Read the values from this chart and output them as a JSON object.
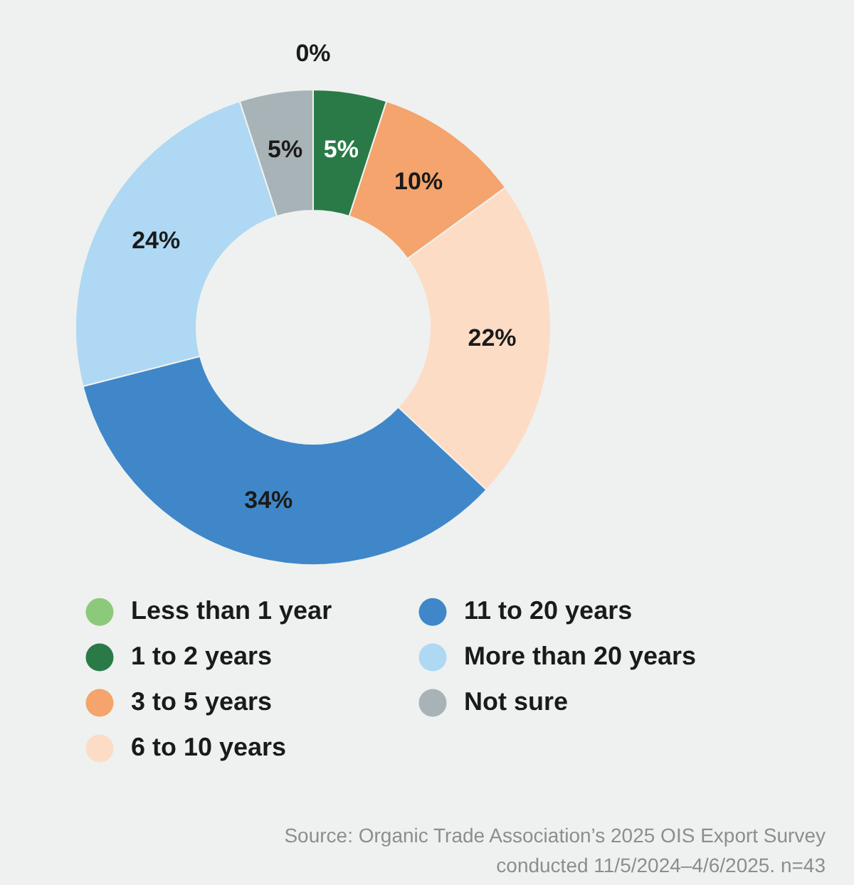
{
  "chart_data": {
    "type": "donut",
    "categories": [
      "Less than 1 year",
      "1 to 2 years",
      "3 to 5 years",
      "6 to 10  years",
      "11 to 20 years",
      "More than 20 years",
      "Not sure"
    ],
    "values": [
      0,
      5,
      10,
      22,
      34,
      24,
      5
    ],
    "value_labels": [
      "0%",
      "5%",
      "10%",
      "22%",
      "34%",
      "24%",
      "5%"
    ],
    "colors": [
      "#8dc97b",
      "#2a7a48",
      "#f4a46c",
      "#fddcc6",
      "#3f87c9",
      "#aed8f3",
      "#a8b3b7"
    ],
    "legend": "bottom",
    "annotations": [
      "Source: Organic Trade Association’s 2025 OIS Export Survey",
      "conducted 11/5/2024–4/6/2025. n=43"
    ]
  }
}
